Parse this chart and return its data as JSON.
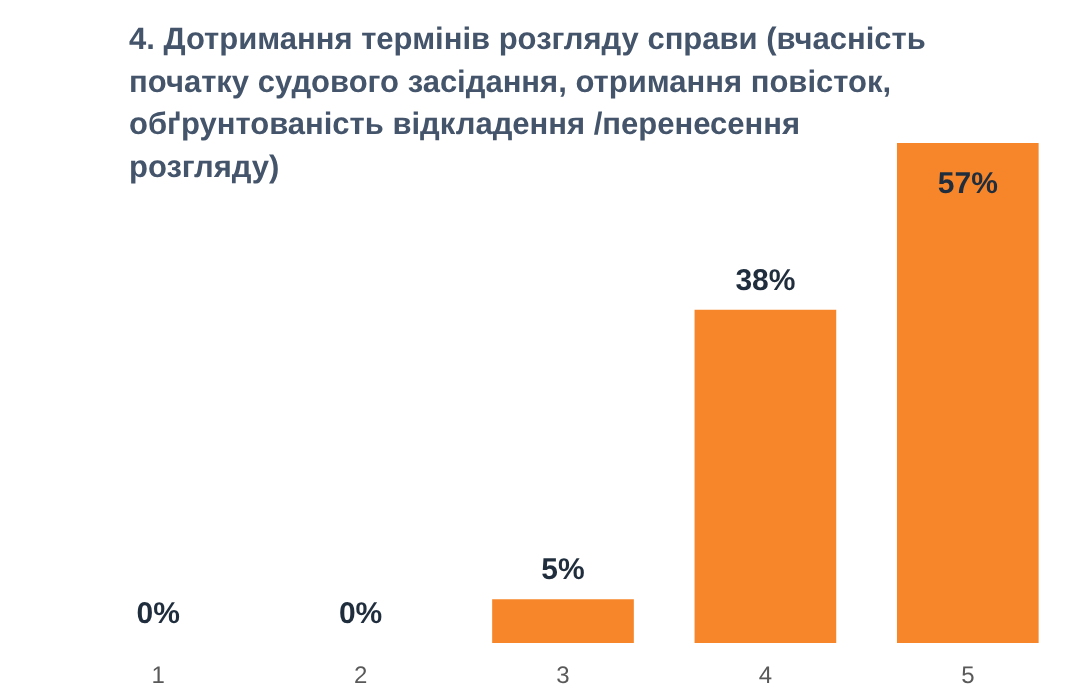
{
  "chart_data": {
    "type": "bar",
    "title": "4. Дотримання термінів розгляду справи (вчасність\nпочатку судового засідання, отримання повісток,\nобґрунтованість відкладення /перенесення\nрозгляду)",
    "categories": [
      "1",
      "2",
      "3",
      "4",
      "5"
    ],
    "values": [
      0,
      0,
      5,
      38,
      57
    ],
    "value_labels": [
      "0%",
      "0%",
      "5%",
      "38%",
      "57%"
    ],
    "color": "#f7862a",
    "grid": false
  }
}
